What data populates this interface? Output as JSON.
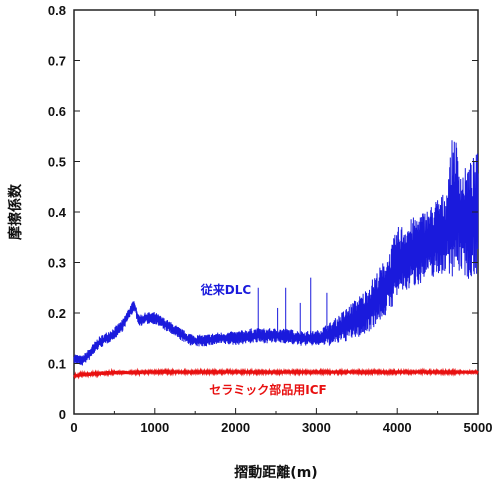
{
  "chart_data": {
    "type": "line",
    "title": "",
    "xlabel": "摺動距離(m)",
    "ylabel": "摩擦係数",
    "xlim": [
      0,
      5000
    ],
    "ylim": [
      0,
      0.8
    ],
    "xticks": [
      "0",
      "1000",
      "2000",
      "3000",
      "4000",
      "5000"
    ],
    "yticks": [
      "0",
      "0.1",
      "0.2",
      "0.3",
      "0.4",
      "0.5",
      "0.6",
      "0.7",
      "0.8"
    ],
    "grid": false,
    "series": [
      {
        "name": "従来DLC",
        "color": "#1a1adc",
        "x": [
          0,
          100,
          200,
          300,
          400,
          500,
          600,
          650,
          700,
          750,
          800,
          900,
          1000,
          1100,
          1200,
          1300,
          1400,
          1500,
          1600,
          1800,
          2000,
          2200,
          2400,
          2600,
          2800,
          3000,
          3200,
          3300,
          3400,
          3500,
          3600,
          3700,
          3800,
          3900,
          4000,
          4100,
          4200,
          4300,
          4400,
          4500,
          4600,
          4700,
          4800,
          4900,
          5000
        ],
        "values": [
          0.11,
          0.105,
          0.12,
          0.14,
          0.15,
          0.16,
          0.175,
          0.19,
          0.205,
          0.215,
          0.185,
          0.19,
          0.19,
          0.18,
          0.17,
          0.16,
          0.15,
          0.145,
          0.145,
          0.15,
          0.15,
          0.155,
          0.155,
          0.155,
          0.15,
          0.15,
          0.16,
          0.17,
          0.18,
          0.19,
          0.2,
          0.22,
          0.24,
          0.26,
          0.3,
          0.31,
          0.32,
          0.33,
          0.34,
          0.35,
          0.36,
          0.42,
          0.38,
          0.38,
          0.4
        ],
        "band": [
          0.01,
          0.01,
          0.012,
          0.012,
          0.012,
          0.012,
          0.012,
          0.012,
          0.012,
          0.012,
          0.012,
          0.012,
          0.012,
          0.012,
          0.012,
          0.012,
          0.012,
          0.012,
          0.012,
          0.012,
          0.014,
          0.015,
          0.015,
          0.015,
          0.015,
          0.015,
          0.025,
          0.03,
          0.035,
          0.04,
          0.045,
          0.05,
          0.055,
          0.06,
          0.07,
          0.07,
          0.07,
          0.07,
          0.07,
          0.08,
          0.08,
          0.15,
          0.1,
          0.12,
          0.12
        ]
      },
      {
        "name": "セラミック部品用ICF",
        "color": "#e81010",
        "x": [
          0,
          100,
          500,
          1000,
          1500,
          2000,
          2500,
          3000,
          3500,
          4000,
          4500,
          5000
        ],
        "values": [
          0.075,
          0.078,
          0.082,
          0.083,
          0.083,
          0.083,
          0.083,
          0.083,
          0.083,
          0.083,
          0.083,
          0.083
        ],
        "band": [
          0.003,
          0.004,
          0.004,
          0.003,
          0.003,
          0.003,
          0.003,
          0.003,
          0.003,
          0.003,
          0.003,
          0.003
        ]
      }
    ]
  }
}
